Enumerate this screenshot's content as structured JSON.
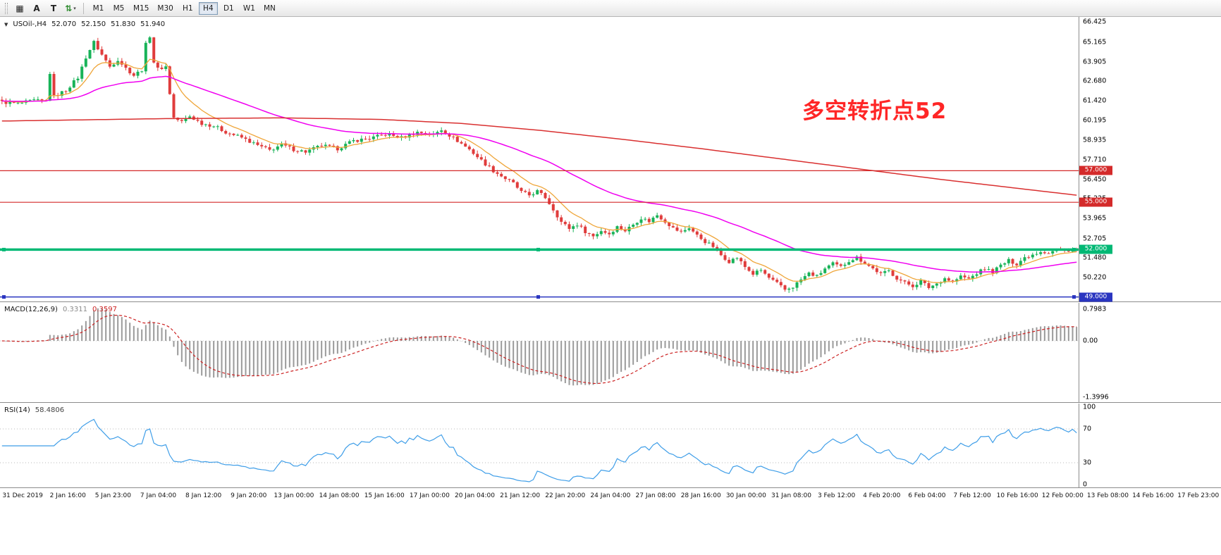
{
  "toolbar": {
    "dropdown_caret": "▾",
    "tools": [
      {
        "name": "charts-grid-icon",
        "glyph": "▦"
      },
      {
        "name": "cursor-tool-a",
        "glyph": "A"
      },
      {
        "name": "text-tool",
        "glyph": "T"
      },
      {
        "name": "scale-tool",
        "glyph": "⇅",
        "color": "#2e8b2e",
        "dropdown": true
      }
    ],
    "timeframes": [
      {
        "label": "M1"
      },
      {
        "label": "M5"
      },
      {
        "label": "M15"
      },
      {
        "label": "M30"
      },
      {
        "label": "H1"
      },
      {
        "label": "H4",
        "active": true
      },
      {
        "label": "D1"
      },
      {
        "label": "W1"
      },
      {
        "label": "MN"
      }
    ]
  },
  "chart": {
    "symbol_line": {
      "collapse_glyph": "▼",
      "symbol_label": "USOil-,H4",
      "open": "52.070",
      "high": "52.150",
      "low": "51.830",
      "close": "51.940"
    },
    "annotation": {
      "text": "多空转折点52",
      "color": "#ff2626"
    },
    "price_axis": {
      "labels": [
        "66.425",
        "65.165",
        "63.905",
        "62.680",
        "61.420",
        "60.195",
        "58.935",
        "57.710",
        "56.450",
        "55.225",
        "53.965",
        "52.705",
        "51.480",
        "50.220"
      ]
    },
    "levels": [
      {
        "label": "57.000",
        "value": 57.0,
        "color": "#d42a2a",
        "width": 1.2,
        "handles": false
      },
      {
        "label": "55.000",
        "value": 55.0,
        "color": "#d42a2a",
        "width": 1.2,
        "handles": false
      },
      {
        "label": "52.000",
        "value": 52.0,
        "color": "#00b874",
        "width": 3.5,
        "handles": true
      },
      {
        "label": "49.000",
        "value": 49.0,
        "color": "#2a35c0",
        "width": 1.5,
        "handles": true
      }
    ]
  },
  "macd": {
    "label": "MACD(12,26,9)",
    "value_main": "0.3311",
    "value_signal": "0.3597",
    "axis": [
      "0.7983",
      "0.00",
      "-1.3996"
    ],
    "range": {
      "top": 0.95,
      "bottom": -1.55
    },
    "params": {
      "fast": 12,
      "slow": 26,
      "signal": 9
    }
  },
  "rsi": {
    "label": "RSI(14)",
    "value": "58.4806",
    "axis": [
      "100",
      "70",
      "30",
      "0"
    ],
    "levels": [
      70,
      30
    ],
    "period": 14
  },
  "time_axis": {
    "labels": [
      "31 Dec 2019",
      "2 Jan 16:00",
      "5 Jan 23:00",
      "7 Jan 04:00",
      "8 Jan 12:00",
      "9 Jan 20:00",
      "13 Jan 00:00",
      "14 Jan 08:00",
      "15 Jan 16:00",
      "17 Jan 00:00",
      "20 Jan 04:00",
      "21 Jan 12:00",
      "22 Jan 20:00",
      "24 Jan 04:00",
      "27 Jan 08:00",
      "28 Jan 16:00",
      "30 Jan 00:00",
      "31 Jan 08:00",
      "3 Feb 12:00",
      "4 Feb 20:00",
      "6 Feb 04:00",
      "7 Feb 12:00",
      "10 Feb 16:00",
      "12 Feb 00:00",
      "13 Feb 08:00",
      "14 Feb 16:00",
      "17 Feb 23:00"
    ]
  },
  "chart_data": {
    "type": "candlestick",
    "symbol": "USOil",
    "timeframe": "H4",
    "n_candles": 270,
    "price_top": 66.75,
    "price_bottom": 48.67,
    "colors": {
      "up": "#18b358",
      "down": "#e03c3c",
      "ma_orange": "#efa63a",
      "ma_magenta": "#f000f0",
      "ma_red": "#d93030",
      "rsi": "#3f9ee8",
      "macd_hist": "#9a9a9a",
      "macd_signal": "#cc2222"
    },
    "close_anchors": [
      [
        0,
        61.35
      ],
      [
        4,
        61.25
      ],
      [
        8,
        61.45
      ],
      [
        11,
        61.4
      ],
      [
        12,
        63.2
      ],
      [
        13,
        61.7
      ],
      [
        16,
        62.1
      ],
      [
        19,
        62.9
      ],
      [
        21,
        64.2
      ],
      [
        23,
        65.15
      ],
      [
        25,
        64.35
      ],
      [
        27,
        63.6
      ],
      [
        29,
        64.05
      ],
      [
        31,
        63.5
      ],
      [
        33,
        63.05
      ],
      [
        35,
        63.4
      ],
      [
        36,
        65.0
      ],
      [
        37,
        65.55
      ],
      [
        38,
        63.9
      ],
      [
        39,
        63.45
      ],
      [
        41,
        63.6
      ],
      [
        42,
        61.9
      ],
      [
        43,
        60.35
      ],
      [
        45,
        60.1
      ],
      [
        47,
        60.45
      ],
      [
        50,
        60.0
      ],
      [
        53,
        59.85
      ],
      [
        56,
        59.45
      ],
      [
        60,
        59.1
      ],
      [
        64,
        58.6
      ],
      [
        67,
        58.3
      ],
      [
        70,
        58.65
      ],
      [
        73,
        58.35
      ],
      [
        76,
        58.2
      ],
      [
        80,
        58.6
      ],
      [
        84,
        58.4
      ],
      [
        88,
        58.9
      ],
      [
        92,
        59.05
      ],
      [
        96,
        59.3
      ],
      [
        100,
        59.1
      ],
      [
        104,
        59.45
      ],
      [
        108,
        59.3
      ],
      [
        110,
        59.6
      ],
      [
        112,
        59.25
      ],
      [
        114,
        58.9
      ],
      [
        117,
        58.35
      ],
      [
        120,
        57.65
      ],
      [
        123,
        57.0
      ],
      [
        126,
        56.5
      ],
      [
        128,
        56.2
      ],
      [
        130,
        55.65
      ],
      [
        132,
        55.45
      ],
      [
        134,
        55.7
      ],
      [
        136,
        55.3
      ],
      [
        138,
        54.55
      ],
      [
        140,
        53.75
      ],
      [
        142,
        53.35
      ],
      [
        144,
        53.6
      ],
      [
        146,
        53.15
      ],
      [
        148,
        52.85
      ],
      [
        150,
        53.2
      ],
      [
        152,
        53.0
      ],
      [
        154,
        53.45
      ],
      [
        156,
        53.2
      ],
      [
        158,
        53.6
      ],
      [
        160,
        54.0
      ],
      [
        162,
        53.8
      ],
      [
        164,
        54.2
      ],
      [
        166,
        53.8
      ],
      [
        168,
        53.35
      ],
      [
        170,
        53.1
      ],
      [
        172,
        53.4
      ],
      [
        174,
        52.9
      ],
      [
        176,
        52.5
      ],
      [
        178,
        52.2
      ],
      [
        180,
        51.65
      ],
      [
        182,
        51.25
      ],
      [
        184,
        51.5
      ],
      [
        186,
        50.9
      ],
      [
        188,
        50.45
      ],
      [
        190,
        50.7
      ],
      [
        192,
        50.2
      ],
      [
        194,
        49.85
      ],
      [
        196,
        49.45
      ],
      [
        198,
        49.65
      ],
      [
        200,
        50.1
      ],
      [
        202,
        50.5
      ],
      [
        204,
        50.3
      ],
      [
        206,
        50.8
      ],
      [
        208,
        51.1
      ],
      [
        210,
        50.9
      ],
      [
        212,
        51.3
      ],
      [
        214,
        51.5
      ],
      [
        216,
        51.15
      ],
      [
        218,
        50.8
      ],
      [
        220,
        50.45
      ],
      [
        222,
        50.65
      ],
      [
        224,
        50.2
      ],
      [
        226,
        49.9
      ],
      [
        228,
        49.7
      ],
      [
        230,
        50.0
      ],
      [
        232,
        49.6
      ],
      [
        234,
        49.85
      ],
      [
        236,
        50.2
      ],
      [
        238,
        49.95
      ],
      [
        240,
        50.3
      ],
      [
        242,
        50.15
      ],
      [
        244,
        50.5
      ],
      [
        246,
        50.8
      ],
      [
        248,
        50.6
      ],
      [
        250,
        51.0
      ],
      [
        252,
        51.3
      ],
      [
        254,
        51.1
      ],
      [
        256,
        51.5
      ],
      [
        258,
        51.7
      ],
      [
        260,
        51.9
      ],
      [
        262,
        51.8
      ],
      [
        264,
        52.0
      ],
      [
        266,
        51.9
      ],
      [
        268,
        52.05
      ],
      [
        269,
        51.94
      ]
    ],
    "red_ma_anchors": [
      [
        0,
        60.15
      ],
      [
        40,
        60.3
      ],
      [
        70,
        60.35
      ],
      [
        95,
        60.25
      ],
      [
        115,
        60.0
      ],
      [
        135,
        59.55
      ],
      [
        155,
        59.0
      ],
      [
        175,
        58.4
      ],
      [
        195,
        57.75
      ],
      [
        215,
        57.1
      ],
      [
        235,
        56.45
      ],
      [
        252,
        55.95
      ],
      [
        269,
        55.45
      ]
    ],
    "ma": {
      "orange_period": 10,
      "magenta_period": 50
    }
  }
}
